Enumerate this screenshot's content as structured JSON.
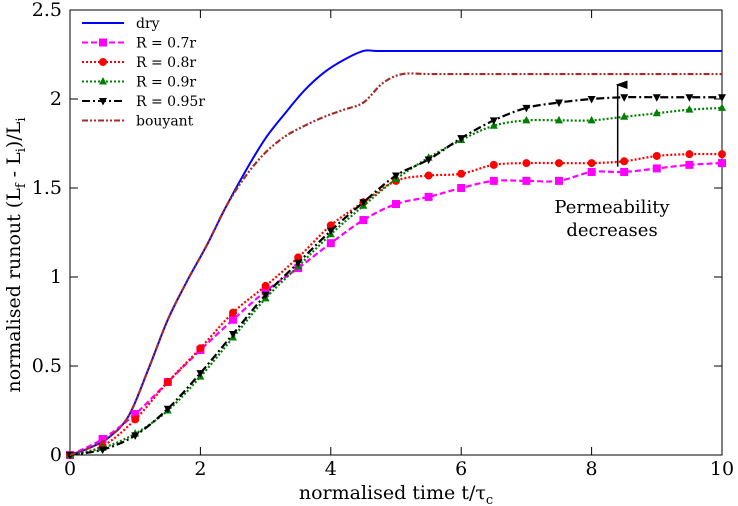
{
  "chart_data": {
    "type": "line",
    "xlabel": "normalised time t/τc",
    "xlabel_main": "normalised time t/τ",
    "xlabel_sub": "c",
    "ylabel": "normalised runout (Lf - Li)/Li",
    "xlim": [
      0,
      10
    ],
    "ylim": [
      0,
      2.5
    ],
    "x_ticks": [
      0,
      2,
      4,
      6,
      8,
      10
    ],
    "y_ticks": [
      0,
      0.5,
      1,
      1.5,
      2,
      2.5
    ],
    "x_tick_labels": [
      "0",
      "2",
      "4",
      "6",
      "8",
      "10"
    ],
    "y_tick_labels": [
      "0",
      "0.5",
      "1",
      "1.5",
      "2",
      "2.5"
    ],
    "grid": false,
    "legend_position": "top-left",
    "annotation": {
      "lines": [
        "Permeability",
        "decreases"
      ],
      "arrow_from": [
        8.4,
        1.62
      ],
      "arrow_to": [
        8.4,
        2.08
      ]
    },
    "series": [
      {
        "name": "dry",
        "color": "#0000ff",
        "style": "solid",
        "marker": "none",
        "x": [
          0,
          0.3,
          0.6,
          0.9,
          1.2,
          1.5,
          1.8,
          2.1,
          2.4,
          2.7,
          3.0,
          3.3,
          3.6,
          3.9,
          4.2,
          4.5,
          4.7,
          5,
          6,
          7,
          8,
          9,
          10
        ],
        "y": [
          0,
          0.04,
          0.1,
          0.22,
          0.48,
          0.76,
          0.98,
          1.18,
          1.4,
          1.6,
          1.78,
          1.92,
          2.05,
          2.15,
          2.22,
          2.27,
          2.27,
          2.27,
          2.27,
          2.27,
          2.27,
          2.27,
          2.27
        ]
      },
      {
        "name": "R = 0.7r",
        "color": "#ff00ff",
        "style": "dashed",
        "marker": "square",
        "x": [
          0,
          0.5,
          1,
          1.5,
          2,
          2.5,
          3,
          3.5,
          4,
          4.5,
          5,
          5.5,
          6,
          6.5,
          7,
          7.5,
          8,
          8.5,
          9,
          9.5,
          10
        ],
        "y": [
          0,
          0.09,
          0.23,
          0.41,
          0.59,
          0.76,
          0.92,
          1.05,
          1.19,
          1.32,
          1.41,
          1.45,
          1.5,
          1.54,
          1.54,
          1.54,
          1.59,
          1.59,
          1.61,
          1.63,
          1.64
        ]
      },
      {
        "name": "R = 0.8r",
        "color": "#ff0000",
        "style": "dotted",
        "marker": "circle",
        "x": [
          0,
          0.5,
          1,
          1.5,
          2,
          2.5,
          3,
          3.5,
          4,
          4.5,
          5,
          5.5,
          6,
          6.5,
          7,
          7.5,
          8,
          8.5,
          9,
          9.5,
          10
        ],
        "y": [
          0,
          0.05,
          0.2,
          0.41,
          0.6,
          0.8,
          0.95,
          1.11,
          1.29,
          1.42,
          1.54,
          1.57,
          1.58,
          1.63,
          1.64,
          1.64,
          1.64,
          1.65,
          1.68,
          1.69,
          1.69
        ]
      },
      {
        "name": "R = 0.9r",
        "color": "#008000",
        "style": "dotted",
        "marker": "triangle-up",
        "x": [
          0,
          0.5,
          1,
          1.5,
          2,
          2.5,
          3,
          3.5,
          4,
          4.5,
          5,
          5.5,
          6,
          6.5,
          7,
          7.5,
          8,
          8.5,
          9,
          9.5,
          10
        ],
        "y": [
          0,
          0.04,
          0.12,
          0.25,
          0.44,
          0.66,
          0.88,
          1.06,
          1.24,
          1.4,
          1.55,
          1.67,
          1.77,
          1.85,
          1.88,
          1.88,
          1.88,
          1.9,
          1.92,
          1.94,
          1.95
        ]
      },
      {
        "name": "R = 0.95r",
        "color": "#000000",
        "style": "dashdot",
        "marker": "triangle-down",
        "x": [
          0,
          0.5,
          1,
          1.5,
          2,
          2.5,
          3,
          3.5,
          4,
          4.5,
          5,
          5.5,
          6,
          6.5,
          7,
          7.5,
          8,
          8.5,
          9,
          9.5,
          10
        ],
        "y": [
          0,
          0.03,
          0.11,
          0.26,
          0.46,
          0.68,
          0.9,
          1.08,
          1.26,
          1.42,
          1.57,
          1.66,
          1.78,
          1.88,
          1.95,
          1.98,
          2.0,
          2.01,
          2.01,
          2.01,
          2.01
        ]
      },
      {
        "name": "bouyant",
        "color": "#a52a2a",
        "style": "dashdotdot",
        "marker": "none",
        "x": [
          0,
          0.3,
          0.6,
          0.9,
          1.2,
          1.5,
          1.8,
          2.1,
          2.4,
          2.7,
          3.0,
          3.3,
          3.6,
          3.9,
          4.2,
          4.5,
          4.8,
          5.1,
          5.5,
          6,
          7,
          8,
          9,
          10
        ],
        "y": [
          0,
          0.04,
          0.1,
          0.22,
          0.48,
          0.76,
          0.98,
          1.18,
          1.4,
          1.57,
          1.7,
          1.79,
          1.85,
          1.9,
          1.94,
          1.98,
          2.09,
          2.14,
          2.14,
          2.14,
          2.14,
          2.14,
          2.14,
          2.14
        ]
      }
    ]
  }
}
